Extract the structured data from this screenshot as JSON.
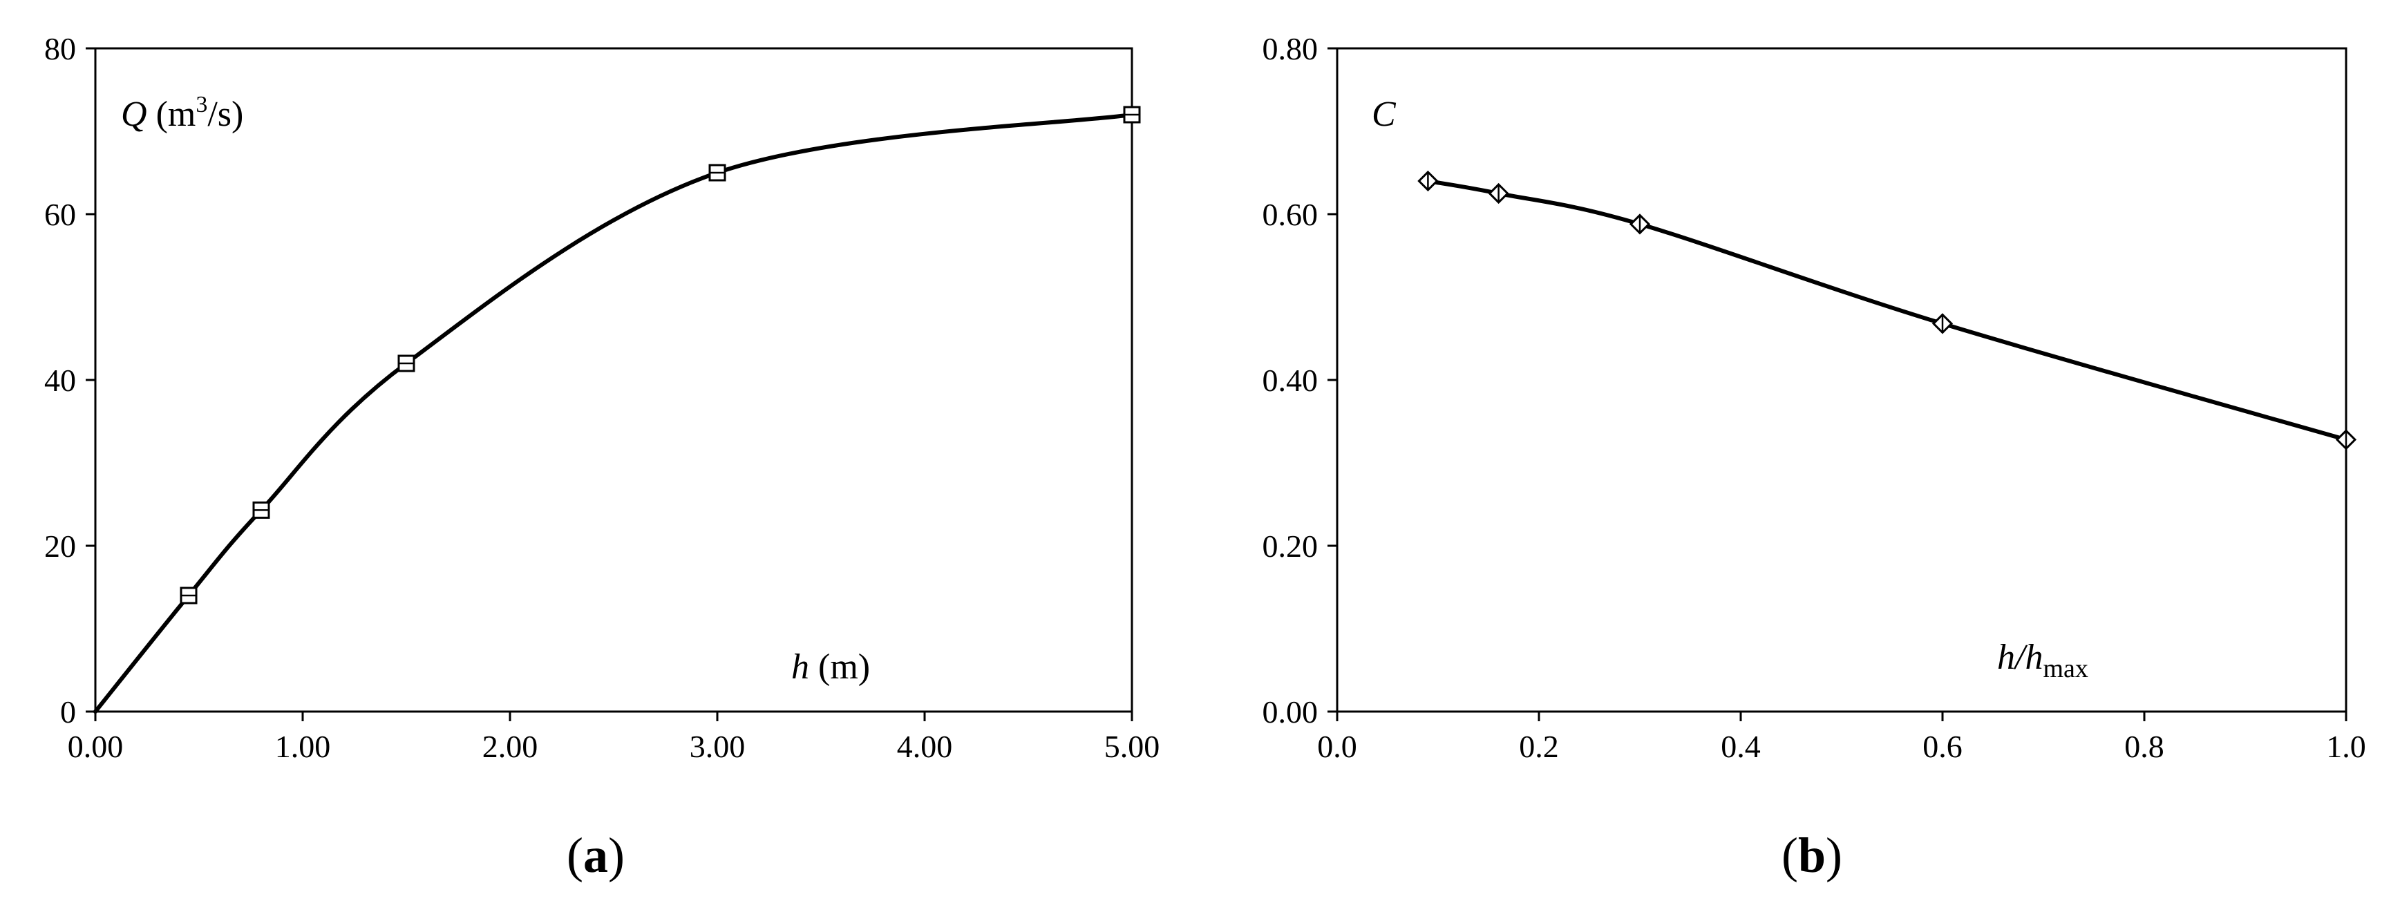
{
  "chart_data": [
    {
      "type": "line",
      "panel": "a",
      "caption": "(a)",
      "ylabel_var": "Q",
      "ylabel_unit_pre": " (m",
      "ylabel_unit_sup": "3",
      "ylabel_unit_post": "/s)",
      "xlabel_var": "h",
      "xlabel_unit": " (m)",
      "xlim": [
        0,
        5
      ],
      "ylim": [
        0,
        80
      ],
      "xticks": [
        0,
        1,
        2,
        3,
        4,
        5
      ],
      "xtick_labels": [
        "0.00",
        "1.00",
        "2.00",
        "3.00",
        "4.00",
        "5.00"
      ],
      "yticks": [
        0,
        20,
        40,
        60,
        80
      ],
      "ytick_labels": [
        "0",
        "20",
        "40",
        "60",
        "80"
      ],
      "grid": false,
      "marker": "square",
      "series": [
        {
          "x": [
            0,
            0.45,
            0.8,
            1.5,
            3.0,
            5.0
          ],
          "y": [
            0,
            14,
            24.3,
            42,
            65,
            72
          ]
        }
      ]
    },
    {
      "type": "line",
      "panel": "b",
      "caption": "(b)",
      "ylabel_var": "C",
      "xlabel_var": "h/h",
      "xlabel_sub": "max",
      "xlim": [
        0,
        1
      ],
      "ylim": [
        0,
        0.8
      ],
      "xticks": [
        0,
        0.2,
        0.4,
        0.6,
        0.8,
        1.0
      ],
      "xtick_labels": [
        "0.0",
        "0.2",
        "0.4",
        "0.6",
        "0.8",
        "1.0"
      ],
      "yticks": [
        0,
        0.2,
        0.4,
        0.6,
        0.8
      ],
      "ytick_labels": [
        "0.00",
        "0.20",
        "0.40",
        "0.60",
        "0.80"
      ],
      "grid": false,
      "marker": "diamond",
      "series": [
        {
          "x": [
            0.09,
            0.16,
            0.3,
            0.6,
            1.0
          ],
          "y": [
            0.64,
            0.625,
            0.588,
            0.468,
            0.328
          ]
        }
      ]
    }
  ]
}
